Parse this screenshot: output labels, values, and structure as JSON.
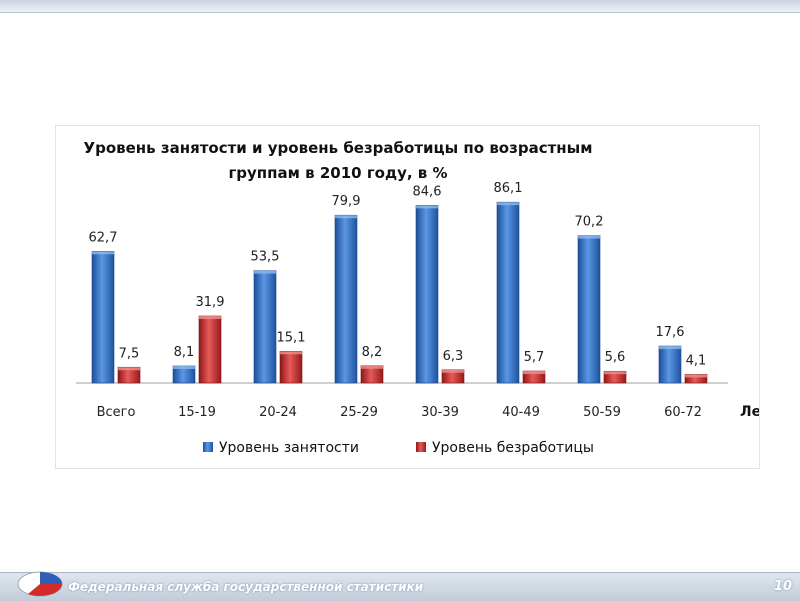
{
  "slide": {
    "footer_text": "Федеральная служба государственной статистики",
    "page_number": "10"
  },
  "chart_data": {
    "type": "bar",
    "title": "Уровень занятости и уровень безработицы по возрастным группам в 2010 году, в %",
    "title_lines": [
      "Уровень занятости и уровень безработицы по возрастным",
      "группам в 2010 году, в %"
    ],
    "categories": [
      "Всего",
      "15-19",
      "20-24",
      "25-29",
      "30-39",
      "40-49",
      "50-59",
      "60-72"
    ],
    "xlabel": "Лет",
    "ylabel": "",
    "ylim": [
      0,
      90
    ],
    "grid": false,
    "legend": "bottom",
    "series": [
      {
        "name": "Уровень занятости",
        "color": "#2f6fc4",
        "values": [
          62.7,
          8.1,
          53.5,
          79.9,
          84.6,
          86.1,
          70.2,
          17.6
        ],
        "labels": [
          "62,7",
          "8,1",
          "53,5",
          "79,9",
          "84,6",
          "86,1",
          "70,2",
          "17,6"
        ]
      },
      {
        "name": "Уровень безработицы",
        "color": "#c62c2c",
        "values": [
          7.5,
          31.9,
          15.1,
          8.2,
          6.3,
          5.7,
          5.6,
          4.1
        ],
        "labels": [
          "7,5",
          "31,9",
          "15,1",
          "8,2",
          "6,3",
          "5,7",
          "5,6",
          "4,1"
        ]
      }
    ]
  }
}
